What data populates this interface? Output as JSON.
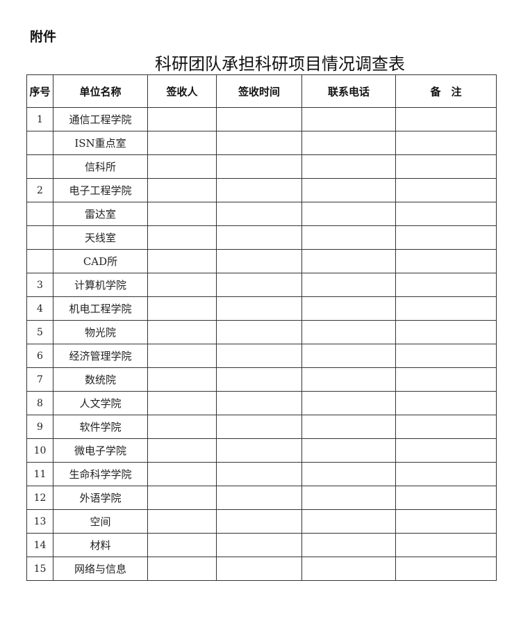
{
  "attachment_label": "附件",
  "title": "科研团队承担科研项目情况调查表",
  "table": {
    "headers": [
      "序号",
      "单位名称",
      "签收人",
      "签收时间",
      "联系电话",
      "备　注"
    ],
    "rows": [
      {
        "no": "1",
        "unit": "通信工程学院"
      },
      {
        "no": "",
        "unit": "ISN重点室"
      },
      {
        "no": "",
        "unit": "信科所"
      },
      {
        "no": "2",
        "unit": "电子工程学院"
      },
      {
        "no": "",
        "unit": "雷达室"
      },
      {
        "no": "",
        "unit": "天线室"
      },
      {
        "no": "",
        "unit": "CAD所"
      },
      {
        "no": "3",
        "unit": "计算机学院"
      },
      {
        "no": "4",
        "unit": "机电工程学院"
      },
      {
        "no": "5",
        "unit": "物光院"
      },
      {
        "no": "6",
        "unit": "经济管理学院"
      },
      {
        "no": "7",
        "unit": "数统院"
      },
      {
        "no": "8",
        "unit": "人文学院"
      },
      {
        "no": "9",
        "unit": "软件学院"
      },
      {
        "no": "10",
        "unit": "微电子学院"
      },
      {
        "no": "11",
        "unit": "生命科学学院"
      },
      {
        "no": "12",
        "unit": "外语学院"
      },
      {
        "no": "13",
        "unit": "空间"
      },
      {
        "no": "14",
        "unit": "材料"
      },
      {
        "no": "15",
        "unit": "网络与信息"
      }
    ]
  }
}
